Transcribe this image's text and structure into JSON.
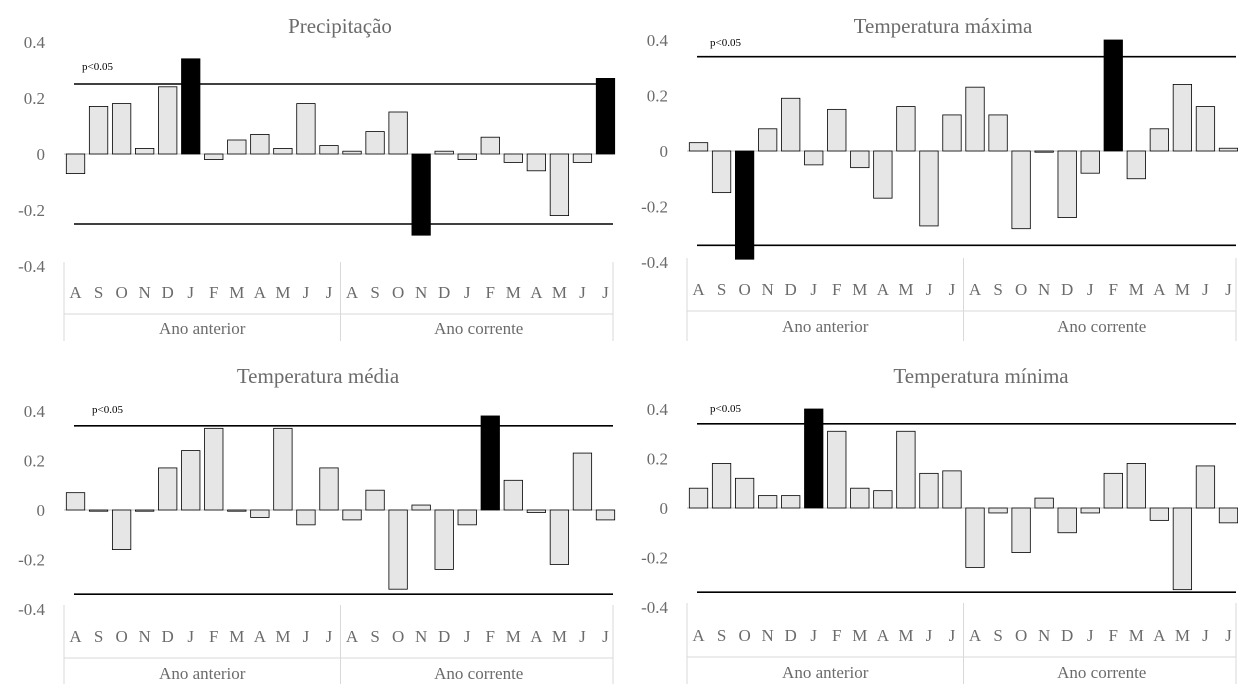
{
  "chart_data": [
    {
      "type": "bar",
      "title": "Precipitação",
      "categories": [
        "A",
        "S",
        "O",
        "N",
        "D",
        "J",
        "F",
        "M",
        "A",
        "M",
        "J",
        "J",
        "A",
        "S",
        "O",
        "N",
        "D",
        "J",
        "F",
        "M",
        "A",
        "M",
        "J",
        "J"
      ],
      "groups": [
        "Ano anterior",
        "Ano corrente"
      ],
      "values": [
        -0.07,
        0.17,
        0.18,
        0.02,
        0.24,
        0.34,
        -0.02,
        0.05,
        0.07,
        0.02,
        0.18,
        0.03,
        0.01,
        0.08,
        0.15,
        -0.29,
        0.01,
        -0.02,
        0.06,
        -0.03,
        -0.06,
        -0.22,
        -0.03,
        0.27
      ],
      "significant": [
        5,
        15,
        23
      ],
      "threshold": 0.25,
      "threshold_label": "p<0.05",
      "yticks": [
        "0.4",
        "0.2",
        "0",
        "-0.2",
        "-0.4"
      ],
      "ylim": [
        -0.4,
        0.4
      ]
    },
    {
      "type": "bar",
      "title": "Temperatura máxima",
      "categories": [
        "A",
        "S",
        "O",
        "N",
        "D",
        "J",
        "F",
        "M",
        "A",
        "M",
        "J",
        "J",
        "A",
        "S",
        "O",
        "N",
        "D",
        "J",
        "F",
        "M",
        "A",
        "M",
        "J",
        "J"
      ],
      "groups": [
        "Ano anterior",
        "Ano corrente"
      ],
      "values": [
        0.03,
        -0.15,
        -0.39,
        0.08,
        0.19,
        -0.05,
        0.15,
        -0.06,
        -0.17,
        0.16,
        -0.27,
        0.13,
        0.23,
        0.13,
        -0.28,
        0.0,
        -0.24,
        -0.08,
        0.4,
        -0.1,
        0.08,
        0.24,
        0.16,
        0.01
      ],
      "significant": [
        2,
        18
      ],
      "threshold": 0.34,
      "threshold_label": "p<0.05",
      "yticks": [
        "0.4",
        "0.2",
        "0",
        "-0.2",
        "-0.4"
      ],
      "ylim": [
        -0.4,
        0.4
      ]
    },
    {
      "type": "bar",
      "title": "Temperatura média",
      "categories": [
        "A",
        "S",
        "O",
        "N",
        "D",
        "J",
        "F",
        "M",
        "A",
        "M",
        "J",
        "J",
        "A",
        "S",
        "O",
        "N",
        "D",
        "J",
        "F",
        "M",
        "A",
        "M",
        "J",
        "J"
      ],
      "groups": [
        "Ano anterior",
        "Ano corrente"
      ],
      "values": [
        0.07,
        0.0,
        -0.16,
        0.0,
        0.17,
        0.24,
        0.33,
        0.0,
        -0.03,
        0.33,
        -0.06,
        0.17,
        -0.04,
        0.08,
        -0.32,
        0.02,
        -0.24,
        -0.06,
        0.38,
        0.12,
        -0.01,
        -0.22,
        0.23,
        -0.04
      ],
      "significant": [
        18
      ],
      "threshold": 0.34,
      "threshold_label": "p<0.05",
      "yticks": [
        "0.4",
        "0.2",
        "0",
        "-0.2",
        "-0.4"
      ],
      "ylim": [
        -0.4,
        0.4
      ]
    },
    {
      "type": "bar",
      "title": "Temperatura mínima",
      "categories": [
        "A",
        "S",
        "O",
        "N",
        "D",
        "J",
        "F",
        "M",
        "A",
        "M",
        "J",
        "J",
        "A",
        "S",
        "O",
        "N",
        "D",
        "J",
        "F",
        "M",
        "A",
        "M",
        "J",
        "J"
      ],
      "groups": [
        "Ano anterior",
        "Ano corrente"
      ],
      "values": [
        0.08,
        0.18,
        0.12,
        0.05,
        0.05,
        0.4,
        0.31,
        0.08,
        0.07,
        0.31,
        0.14,
        0.15,
        -0.24,
        -0.02,
        -0.18,
        0.04,
        -0.1,
        -0.02,
        0.14,
        0.18,
        -0.05,
        -0.33,
        0.17,
        -0.06
      ],
      "significant": [
        5
      ],
      "threshold": 0.34,
      "threshold_label": "p<0.05",
      "yticks": [
        "0.4",
        "0.2",
        "0",
        "-0.2",
        "-0.4"
      ],
      "ylim": [
        -0.4,
        0.4
      ]
    }
  ]
}
